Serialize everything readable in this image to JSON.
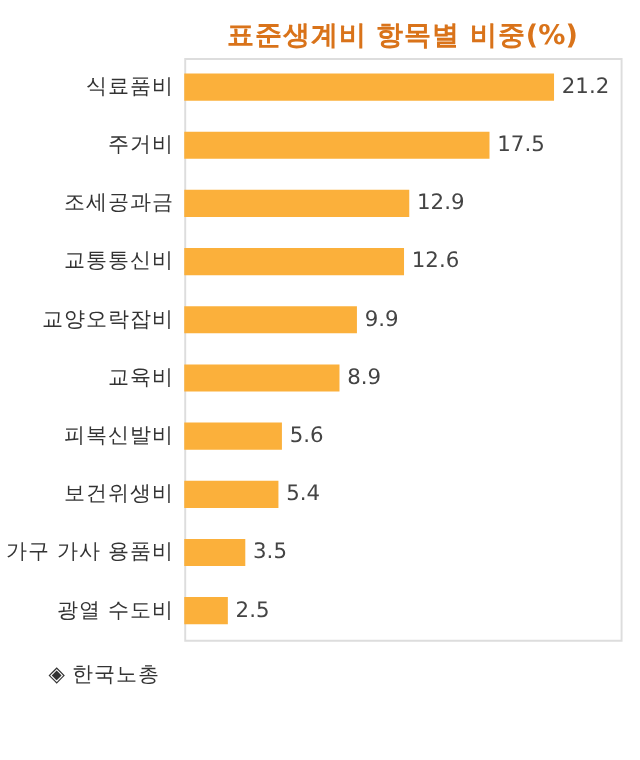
{
  "chart_data": {
    "type": "bar",
    "orientation": "horizontal",
    "title": "표준생계비 항목별 비중(%)",
    "categories": [
      "식료품비",
      "주거비",
      "조세공과금",
      "교통통신비",
      "교양오락잡비",
      "교육비",
      "피복신발비",
      "보건위생비",
      "가구 가사 용품비",
      "광열 수도비"
    ],
    "values": [
      21.2,
      17.5,
      12.9,
      12.6,
      9.9,
      8.9,
      5.6,
      5.4,
      3.5,
      2.5
    ],
    "color": "#fbb03b",
    "data_labels": true,
    "annotations": [
      "◈ 한국노총"
    ]
  }
}
